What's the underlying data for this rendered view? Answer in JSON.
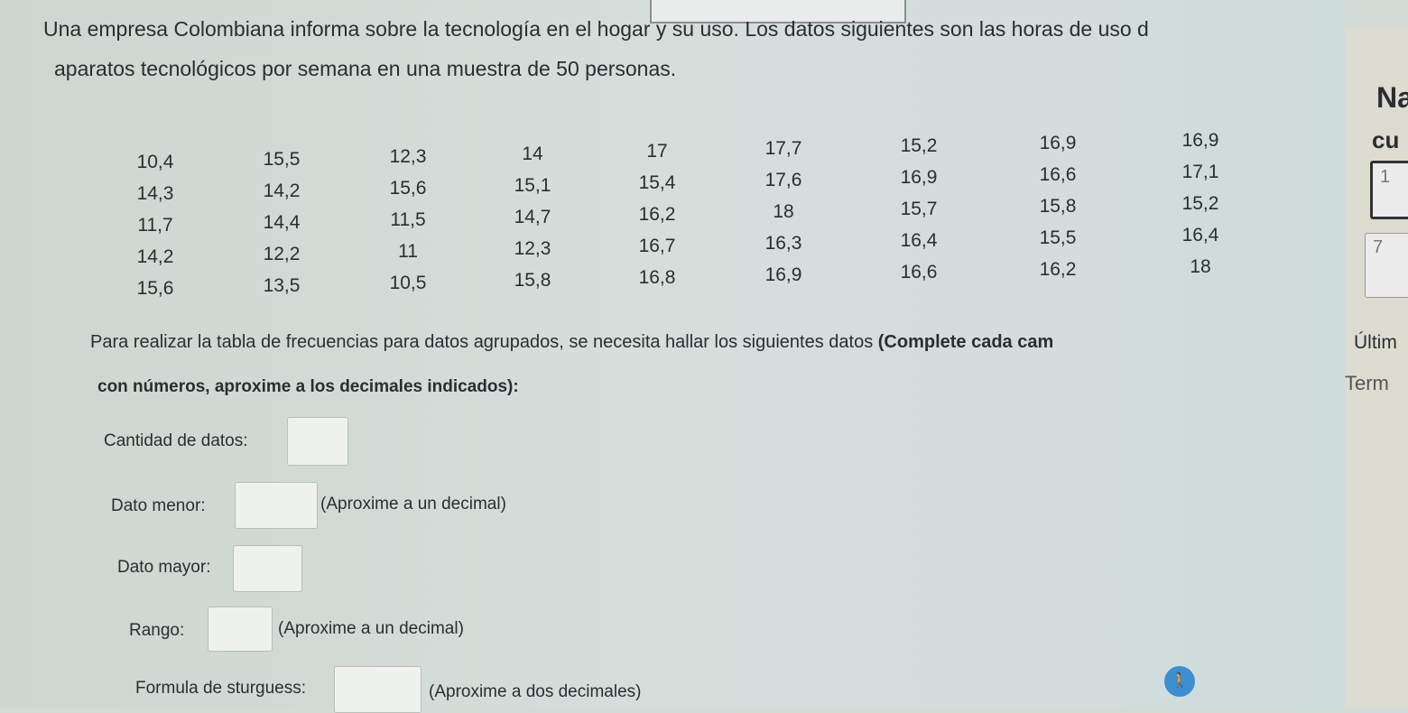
{
  "intro": {
    "line1": "Una empresa Colombiana informa sobre la tecnología en el hogar y su uso. Los datos siguientes son las horas de uso d",
    "line2": "aparatos tecnológicos por semana en una muestra de 50 personas."
  },
  "data_table": [
    [
      "10,4",
      "15,5",
      "12,3",
      "14",
      "17",
      "17,7",
      "15,2",
      "16,9",
      "16,9"
    ],
    [
      "14,3",
      "14,2",
      "15,6",
      "15,1",
      "15,4",
      "17,6",
      "16,9",
      "16,6",
      "17,1"
    ],
    [
      "11,7",
      "14,4",
      "11,5",
      "14,7",
      "16,2",
      "18",
      "15,7",
      "15,8",
      "15,2"
    ],
    [
      "14,2",
      "12,2",
      "11",
      "12,3",
      "16,7",
      "16,3",
      "16,4",
      "15,5",
      "16,4"
    ],
    [
      "15,6",
      "13,5",
      "10,5",
      "15,8",
      "16,8",
      "16,9",
      "16,6",
      "16,2",
      "18"
    ]
  ],
  "instructions": {
    "text": "Para realizar la tabla de frecuencias para datos agrupados, se necesita hallar los siguientes datos ",
    "bold": "(Complete cada cam",
    "line2": "con números, aproxime a los decimales indicados):"
  },
  "form": {
    "cantidad_label": "Cantidad de datos:",
    "menor_label": "Dato menor:",
    "menor_hint": "(Aproxime a un decimal)",
    "mayor_label": "Dato mayor:",
    "rango_label": "Rango:",
    "rango_hint": "(Aproxime a un decimal)",
    "sturgess_label": "Formula de sturguess:",
    "sturgess_hint": "(Aproxime a dos decimales)"
  },
  "sidebar": {
    "heading1": "Na",
    "heading2": "cu",
    "box1": "1",
    "box2": "7",
    "ultimo": "Últim",
    "term": "Term"
  },
  "fab_icon": "accessibility-icon",
  "colors": {
    "accent": "#3c8fd0"
  }
}
